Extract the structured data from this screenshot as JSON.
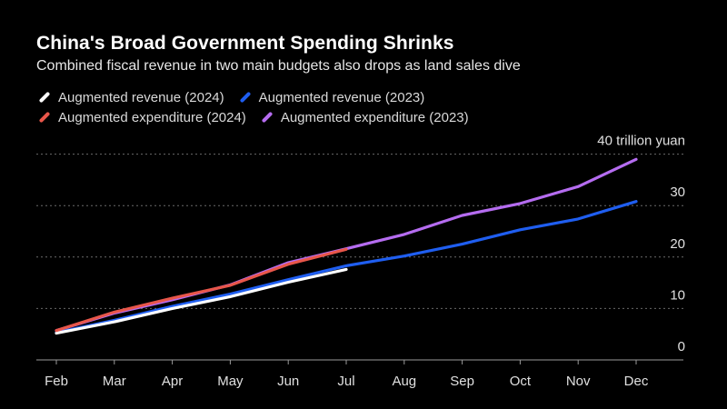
{
  "chart_data": {
    "type": "line",
    "title": "China's Broad Government Spending Shrinks",
    "subtitle": "Combined fiscal revenue in two main budgets also drops as land sales dive",
    "xlabel": "",
    "ylabel": "",
    "y_unit_label": "40 trillion yuan",
    "categories": [
      "Feb",
      "Mar",
      "Apr",
      "May",
      "Jun",
      "Jul",
      "Aug",
      "Sep",
      "Oct",
      "Nov",
      "Dec"
    ],
    "y_ticks": [
      {
        "value": 0,
        "label": "0"
      },
      {
        "value": 10,
        "label": "10"
      },
      {
        "value": 20,
        "label": "20"
      },
      {
        "value": 30,
        "label": "30"
      },
      {
        "value": 40,
        "label": "40 trillion yuan"
      }
    ],
    "ylim": [
      0,
      40
    ],
    "grid": true,
    "legend_position": "top-left",
    "series": [
      {
        "name": "Augmented revenue (2023)",
        "color": "#1f5ef0",
        "values": [
          5.3,
          7.7,
          10.4,
          12.8,
          15.6,
          18.3,
          20.2,
          22.5,
          25.3,
          27.4,
          30.8
        ]
      },
      {
        "name": "Augmented expenditure (2023)",
        "color": "#b56cf0",
        "values": [
          5.7,
          9.1,
          11.7,
          14.6,
          18.9,
          21.6,
          24.4,
          28.1,
          30.4,
          33.7,
          39.0
        ]
      },
      {
        "name": "Augmented revenue (2024)",
        "color": "#ffffff",
        "values": [
          5.2,
          7.4,
          10.0,
          12.3,
          15.1,
          17.6,
          null,
          null,
          null,
          null,
          null
        ]
      },
      {
        "name": "Augmented expenditure (2024)",
        "color": "#e8564a",
        "values": [
          5.7,
          9.3,
          12.0,
          14.5,
          18.6,
          21.5,
          null,
          null,
          null,
          null,
          null
        ]
      }
    ]
  },
  "legend": {
    "row1": [
      {
        "label": "Augmented revenue (2024)",
        "color": "#ffffff"
      },
      {
        "label": "Augmented revenue (2023)",
        "color": "#1f5ef0"
      }
    ],
    "row2": [
      {
        "label": "Augmented expenditure (2024)",
        "color": "#e8564a"
      },
      {
        "label": "Augmented expenditure (2023)",
        "color": "#b56cf0"
      }
    ]
  },
  "colors": {
    "background": "#000000",
    "grid": "#6a6a6a",
    "axis": "#9a9a9a",
    "text": "#ffffff",
    "tick_text": "#e0e0e0"
  }
}
